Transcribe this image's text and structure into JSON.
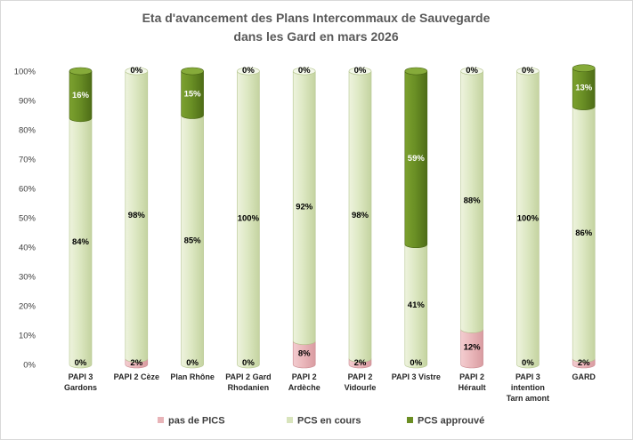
{
  "chart_data": {
    "type": "bar",
    "stacked": true,
    "percent": true,
    "title": [
      "Eta d'avancement des Plans Intercommaux de Sauvegarde",
      "dans les Gard en mars 2026"
    ],
    "xlabel": "",
    "ylabel": "",
    "ylim": [
      0,
      100
    ],
    "yticks": [
      "0%",
      "10%",
      "20%",
      "30%",
      "40%",
      "50%",
      "60%",
      "70%",
      "80%",
      "90%",
      "100%"
    ],
    "grid": false,
    "legend_position": "bottom",
    "categories": [
      [
        "PAPI 3",
        "Gardons"
      ],
      [
        "PAPI 2 Cèze"
      ],
      [
        "Plan Rhône"
      ],
      [
        "PAPI 2 Gard",
        "Rhodanien"
      ],
      [
        "PAPI 2",
        "Ardèche"
      ],
      [
        "PAPI 2",
        "Vidourle"
      ],
      [
        "PAPI 3 Vistre"
      ],
      [
        "PAPI 2",
        "Hérault"
      ],
      [
        "PAPI 3",
        "intention",
        "Tarn amont"
      ],
      [
        "GARD"
      ]
    ],
    "series": [
      {
        "name": "pas de PICS",
        "color": "#e8b4b8",
        "values": [
          0,
          2,
          0,
          0,
          8,
          2,
          0,
          12,
          0,
          2
        ],
        "labels": [
          "0%",
          "2%",
          "0%",
          "0%",
          "8%",
          "2%",
          "0%",
          "12%",
          "0%",
          "2%"
        ]
      },
      {
        "name": "PCS en cours",
        "color": "#d8e4bc",
        "values": [
          84,
          98,
          85,
          100,
          92,
          98,
          41,
          88,
          100,
          86
        ],
        "labels": [
          "84%",
          "98%",
          "85%",
          "100%",
          "92%",
          "98%",
          "41%",
          "88%",
          "100%",
          "86%"
        ]
      },
      {
        "name": "PCS approuvé",
        "color": "#6b8e23",
        "values": [
          16,
          0,
          15,
          0,
          0,
          0,
          59,
          0,
          0,
          13
        ],
        "labels": [
          "16%",
          "0%",
          "15%",
          "0%",
          "0%",
          "0%",
          "59%",
          "0%",
          "0%",
          "13%"
        ]
      }
    ]
  }
}
